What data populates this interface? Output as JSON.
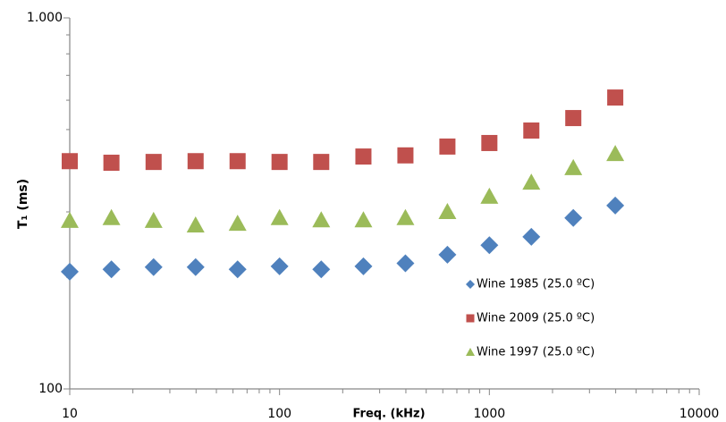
{
  "chart_data": {
    "type": "scatter",
    "x_label": "Freq. (kHz)",
    "y_label": "T₁ (ms)",
    "x": [
      10,
      15.8,
      25.1,
      39.8,
      63.1,
      100,
      158,
      251,
      398,
      631,
      1000,
      1585,
      2512,
      3981
    ],
    "series": [
      {
        "name": "Wine 1985 (25.0 ºC)",
        "color": "#4f81bd",
        "marker": "diamond",
        "values": [
          207,
          210,
          213,
          213,
          210,
          214,
          210,
          214,
          218,
          230,
          244,
          257,
          289,
          312
        ]
      },
      {
        "name": "Wine 2009 (25.0 ºC)",
        "color": "#c0504d",
        "marker": "square",
        "values": [
          411,
          407,
          409,
          411,
          411,
          409,
          409,
          423,
          426,
          450,
          460,
          497,
          537,
          610
        ]
      },
      {
        "name": "Wine 1997 (25.0 ºC)",
        "color": "#9bbb59",
        "marker": "triangle",
        "values": [
          284,
          289,
          284,
          276,
          279,
          289,
          285,
          285,
          289,
          300,
          330,
          360,
          394,
          430
        ]
      }
    ],
    "xlog": true,
    "ylog": true,
    "xlim": [
      10,
      10000
    ],
    "xticks": [
      10,
      100,
      1000,
      10000
    ],
    "ylim": [
      100,
      1000
    ],
    "yticks": [
      100,
      {
        "value": 1000,
        "label": "1.000"
      }
    ],
    "grid": false,
    "legend": "lower-right"
  }
}
